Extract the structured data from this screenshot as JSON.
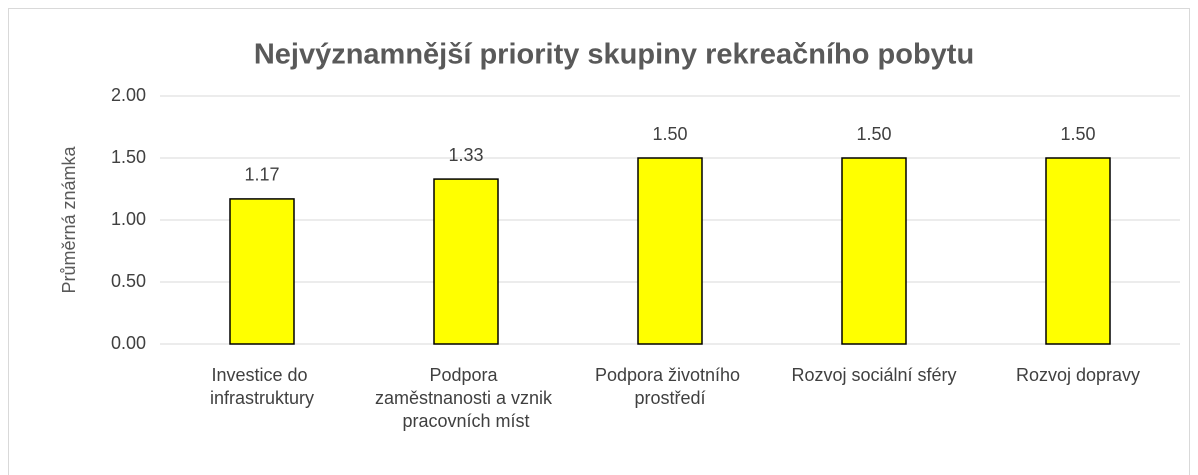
{
  "chart_data": {
    "type": "bar",
    "title": "Nejvýznamnější priority skupiny rekreačního pobytu",
    "y_label": "Průměrná známka",
    "categories": [
      "Investice do infrastruktury",
      "Podpora zaměstnanosti a vznik pracovních míst",
      "Podpora životního prostředí",
      "Rozvoj sociální sféry",
      "Rozvoj dopravy"
    ],
    "values": [
      1.17,
      1.33,
      1.5,
      1.5,
      1.5
    ],
    "value_labels": [
      "1.17",
      "1.33",
      "1.50",
      "1.50",
      "1.50"
    ],
    "color": "#ffff00",
    "ylim": [
      0,
      2
    ],
    "yticks": [
      {
        "value": 0,
        "label": "0.00"
      },
      {
        "value": 0.5,
        "label": "0.50"
      },
      {
        "value": 1,
        "label": "1.00"
      },
      {
        "value": 1.5,
        "label": "1.50"
      },
      {
        "value": 2,
        "label": "2.00"
      }
    ],
    "grid": true
  }
}
